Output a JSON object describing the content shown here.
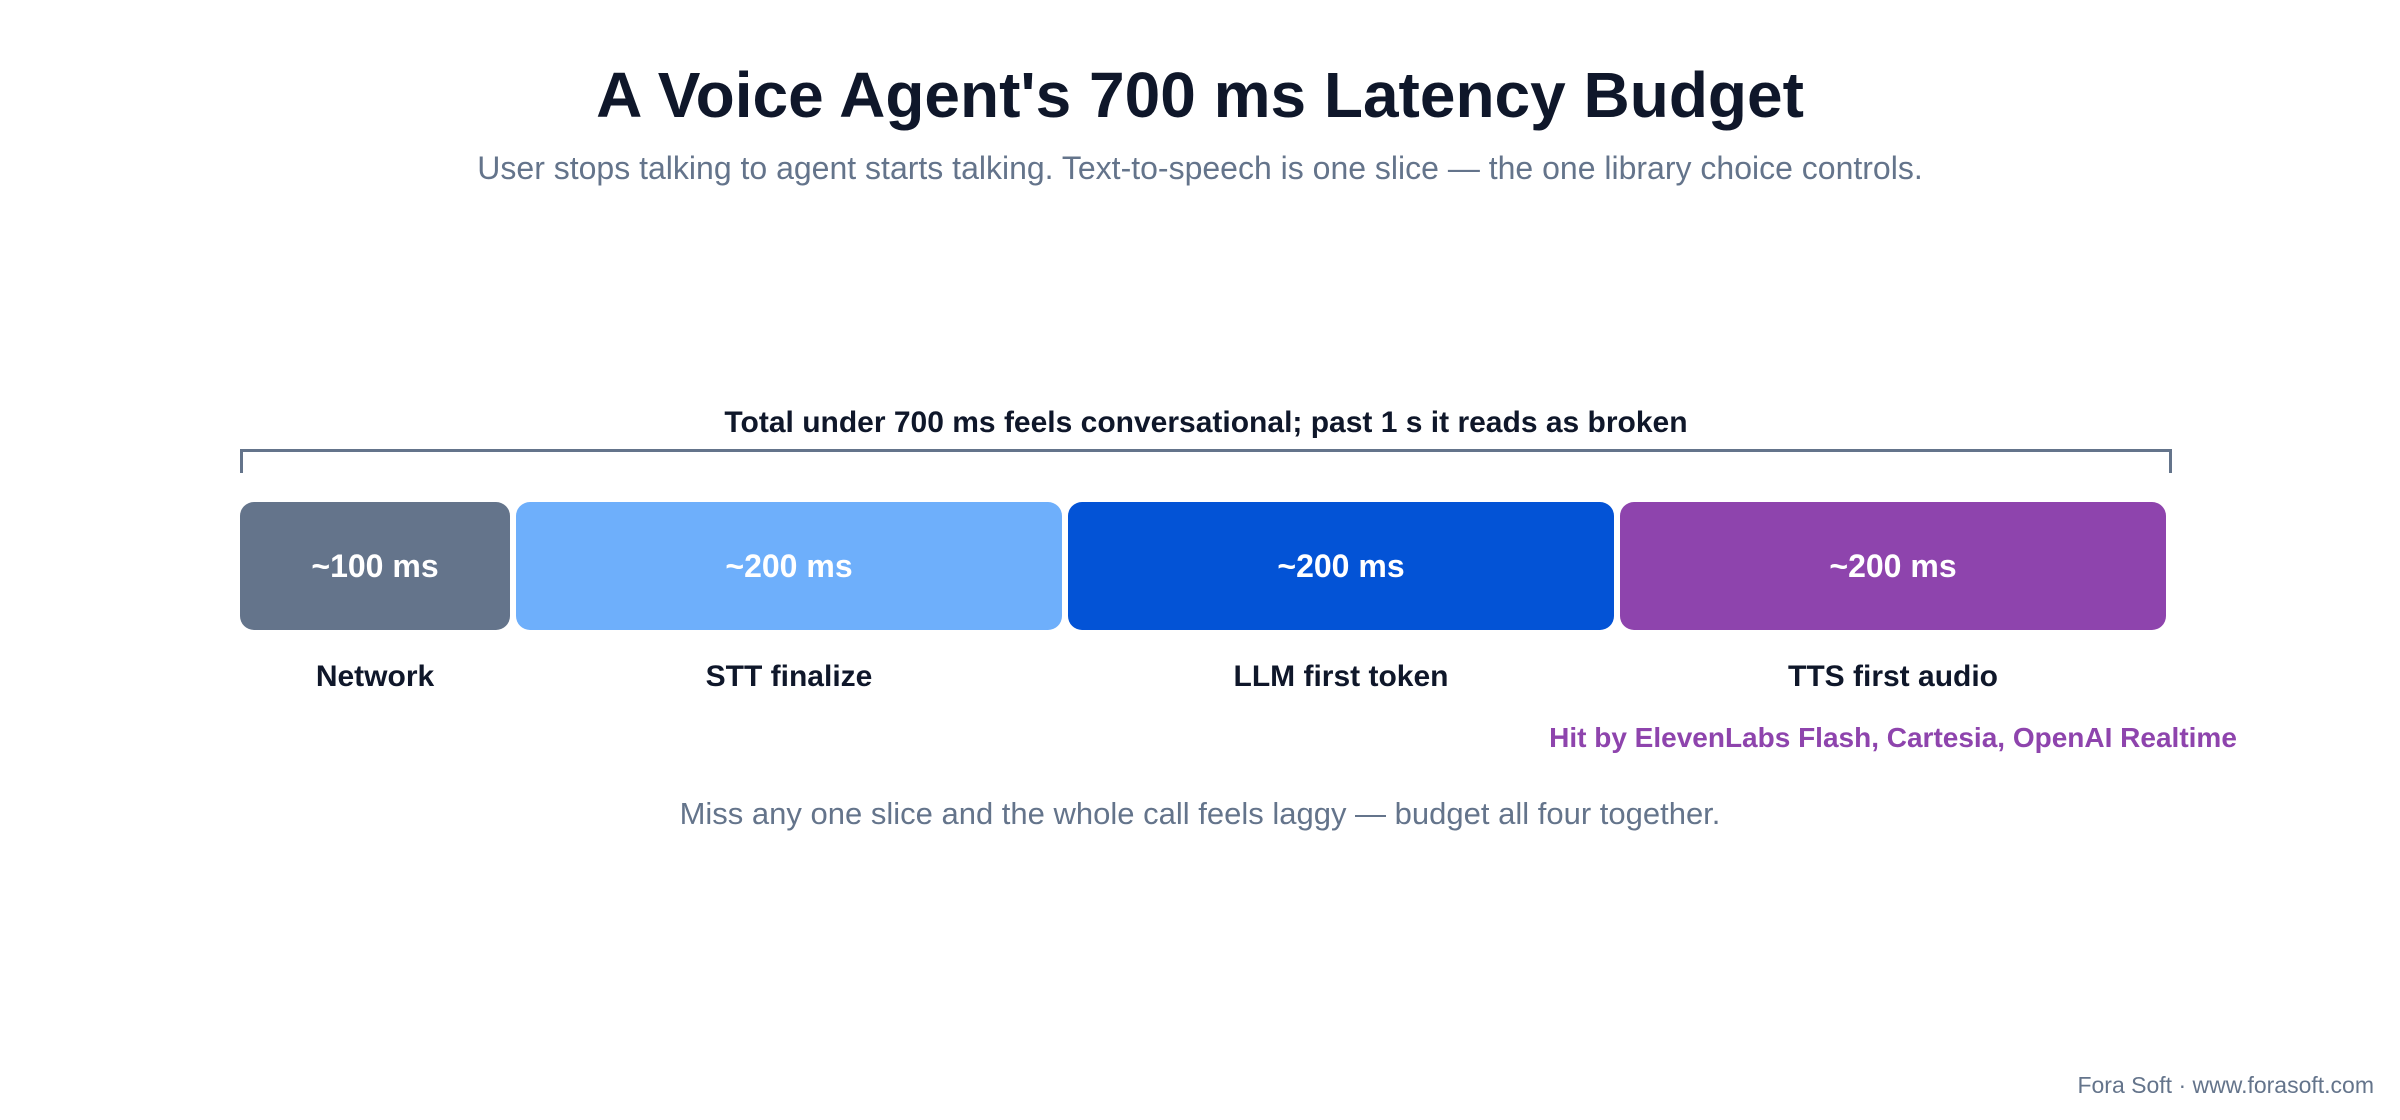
{
  "title": "A Voice Agent's 700 ms Latency Budget",
  "subtitle": "User stops talking to agent starts talking. Text-to-speech is one slice — the one library choice controls.",
  "bracket_label": "Total under 700 ms feels conversational; past 1 s it reads as broken",
  "segments": [
    {
      "value": "~100 ms",
      "label": "Network",
      "color": "#64748b"
    },
    {
      "value": "~200 ms",
      "label": "STT finalize",
      "color": "#6eaffb"
    },
    {
      "value": "~200 ms",
      "label": "LLM first token",
      "color": "#0353d6"
    },
    {
      "value": "~200 ms",
      "label": "TTS first audio",
      "color": "#8e44ad",
      "note": "Hit by ElevenLabs Flash, Cartesia, OpenAI Realtime",
      "note_color": "#8e44ad"
    }
  ],
  "footnote": "Miss any one slice and the whole call feels laggy — budget all four together.",
  "credit": "Fora Soft · www.forasoft.com"
}
